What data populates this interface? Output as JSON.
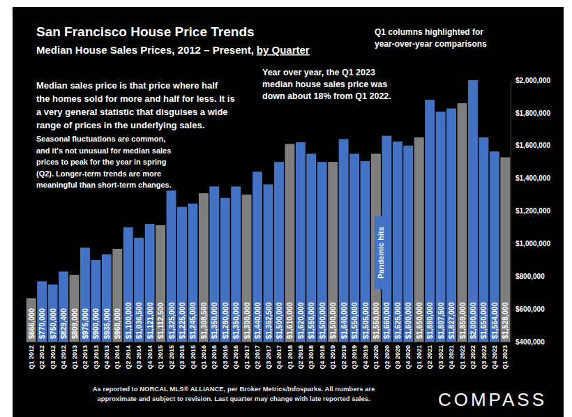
{
  "chart_data": {
    "type": "bar",
    "title": "San Francisco House Price Trends",
    "subtitle": "Median House Sales Prices, 2012 – Present,",
    "subtitle_underlined": "by Quarter",
    "categories": [
      "Q1 2012",
      "Q2 2012",
      "Q3 2012",
      "Q4 2012",
      "Q1 2013",
      "Q2 2013",
      "Q3 2013",
      "Q4 2013",
      "Q1 2014",
      "Q2 2014",
      "Q3 2014",
      "Q4 2014",
      "Q1 2015",
      "Q2 2015",
      "Q3 2015",
      "Q4 2015",
      "Q1 2016",
      "Q2 2016",
      "Q3 2016",
      "Q4 2016",
      "Q1 2017",
      "Q2 2017",
      "Q3 2017",
      "Q4 2017",
      "Q1 2018",
      "Q2 2018",
      "Q3 2018",
      "Q4 2018",
      "Q1 2019",
      "Q2 2019",
      "Q3 2019",
      "Q4 2019",
      "Q1 2020",
      "Q2 2020",
      "Q3 2020",
      "Q4 2020",
      "Q1 2021",
      "Q2 2021",
      "Q3 2021",
      "Q4 2021",
      "Q1 2022",
      "Q2 2022",
      "Q3 2022",
      "Q4 2022",
      "Q1 2023"
    ],
    "values": [
      666000,
      770000,
      750000,
      829400,
      809000,
      975000,
      900000,
      935000,
      968000,
      1100000,
      1036500,
      1121000,
      1112500,
      1325000,
      1225000,
      1245000,
      1308500,
      1350000,
      1280000,
      1350000,
      1300000,
      1440000,
      1362500,
      1500000,
      1610000,
      1620000,
      1550000,
      1500000,
      1500000,
      1640000,
      1550000,
      1505000,
      1550000,
      1660000,
      1625000,
      1600000,
      1650000,
      1880000,
      1807500,
      1827000,
      1859000,
      2000000,
      1650000,
      1564000,
      1528000
    ],
    "value_labels": [
      "$666,000",
      "$770,000",
      "$750,000",
      "$829,400",
      "$809,000",
      "$975,000",
      "$900,000",
      "$935,000",
      "$968,000",
      "$1,100,000",
      "$1,036,500",
      "$1,121,000",
      "$1,112,500",
      "$1,325,000",
      "$1,225,000",
      "$1,245,000",
      "$1,308,500",
      "$1,350,000",
      "$1,280,000",
      "$1,350,000",
      "$1,300,000",
      "$1,440,000",
      "$1,362,500",
      "$1,500,000",
      "$1,610,000",
      "$1,620,000",
      "$1,550,000",
      "$1,500,000",
      "$1,500,000",
      "$1,640,000",
      "$1,550,000",
      "$1,505,000",
      "$1,550,000",
      "$1,660,000",
      "$1,625,000",
      "$1,600,000",
      "$1,650,000",
      "$1,880,000",
      "$1,807,500",
      "$1,827,000",
      "$1,859,000",
      "$2,000,000",
      "$1,650,000",
      "$1,564,000",
      "$1,528,000"
    ],
    "colors": [
      "#7f7f7f",
      "#4472c4",
      "#4472c4",
      "#4472c4",
      "#7f7f7f",
      "#4472c4",
      "#4472c4",
      "#4472c4",
      "#7f7f7f",
      "#4472c4",
      "#4472c4",
      "#4472c4",
      "#7f7f7f",
      "#4472c4",
      "#4472c4",
      "#4472c4",
      "#7f7f7f",
      "#4472c4",
      "#4472c4",
      "#4472c4",
      "#7f7f7f",
      "#4472c4",
      "#4472c4",
      "#4472c4",
      "#7f7f7f",
      "#4472c4",
      "#4472c4",
      "#4472c4",
      "#7f7f7f",
      "#4472c4",
      "#4472c4",
      "#4472c4",
      "#7f7f7f",
      "#4472c4",
      "#4472c4",
      "#4472c4",
      "#7f7f7f",
      "#4472c4",
      "#4472c4",
      "#4472c4",
      "#7f7f7f",
      "#4472c4",
      "#4472c4",
      "#4472c4",
      "#7f7f7f"
    ],
    "ylim": [
      400000,
      2000000
    ],
    "yticks": [
      {
        "value": 400000,
        "label": "$400,000"
      },
      {
        "value": 600000,
        "label": "$600,000"
      },
      {
        "value": 800000,
        "label": "$800,000"
      },
      {
        "value": 1000000,
        "label": "$1,000,000"
      },
      {
        "value": 1200000,
        "label": "$1,200,000"
      },
      {
        "value": 1400000,
        "label": "$1,400,000"
      },
      {
        "value": 1600000,
        "label": "$1,600,000"
      },
      {
        "value": 1800000,
        "label": "$1,800,000"
      },
      {
        "value": 2000000,
        "label": "$2,000,000"
      }
    ],
    "grid": false,
    "data_labels": true,
    "annotations": [
      {
        "lines": [
          "Q1 columns highlighted for",
          "year-over-year comparisons"
        ]
      },
      {
        "lines": [
          "Median sales price is that price where half",
          "the homes sold for more and half for less. It is",
          "a very general statistic that disguises a wide",
          "range of prices in the underlying sales."
        ]
      },
      {
        "lines": [
          "Seasonal fluctuations are common,",
          "and it's not unusual for median sales",
          "prices to peak for the year in spring",
          "(Q2). Longer-term trends are more",
          "meaningful than short-term changes."
        ]
      },
      {
        "lines": [
          "Year over year, the Q1 2023",
          "median house sales price was",
          "down about 18% from Q1 2022."
        ]
      },
      {
        "lines": [
          "Pandemic hits"
        ]
      }
    ],
    "footer": [
      "As reported to NORCAL MLS® ALLIANCE, per Broker Metrics/Infosparks. All numbers are",
      "approximate and subject to revision. Last quarter may change with late reported sales."
    ],
    "brand": "COMPASS"
  }
}
